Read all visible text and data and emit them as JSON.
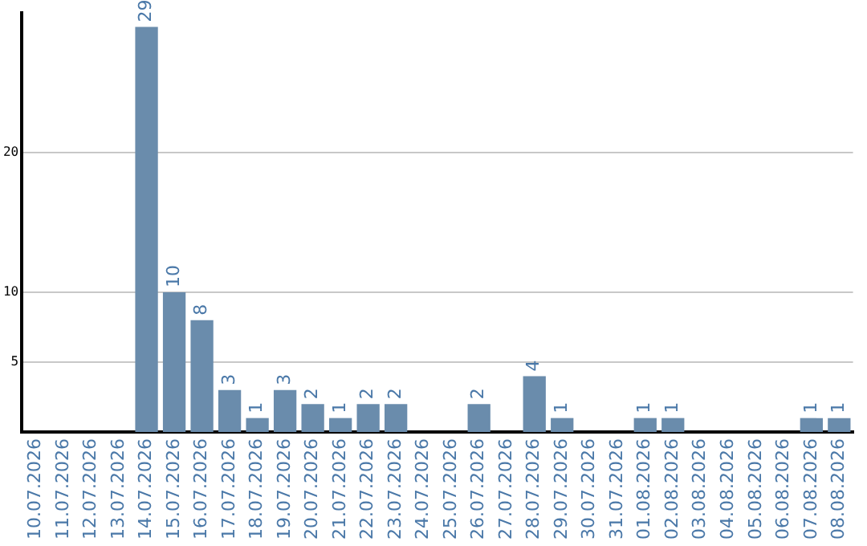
{
  "chart_data": {
    "type": "bar",
    "categories": [
      "10.07.2026",
      "11.07.2026",
      "12.07.2026",
      "13.07.2026",
      "14.07.2026",
      "15.07.2026",
      "16.07.2026",
      "17.07.2026",
      "18.07.2026",
      "19.07.2026",
      "20.07.2026",
      "21.07.2026",
      "22.07.2026",
      "23.07.2026",
      "24.07.2026",
      "25.07.2026",
      "26.07.2026",
      "27.07.2026",
      "28.07.2026",
      "29.07.2026",
      "30.07.2026",
      "31.07.2026",
      "01.08.2026",
      "02.08.2026",
      "03.08.2026",
      "04.08.2026",
      "05.08.2026",
      "06.08.2026",
      "07.08.2026",
      "08.08.2026"
    ],
    "values": [
      0,
      0,
      0,
      0,
      29,
      10,
      8,
      3,
      1,
      3,
      2,
      1,
      2,
      2,
      0,
      0,
      2,
      0,
      4,
      1,
      0,
      0,
      1,
      1,
      0,
      0,
      0,
      0,
      1,
      1
    ],
    "value_labels": [
      null,
      null,
      null,
      null,
      "29",
      "10",
      "8",
      "3",
      "1",
      "3",
      "2",
      "1",
      "2",
      "2",
      null,
      null,
      "2",
      null,
      "4",
      "1",
      null,
      null,
      "1",
      "1",
      null,
      null,
      null,
      null,
      "1",
      "1"
    ],
    "color": "#6a8cac",
    "ylim": [
      0,
      30
    ],
    "yticks": [
      5,
      10,
      20
    ],
    "grid": "y",
    "legend": false
  }
}
